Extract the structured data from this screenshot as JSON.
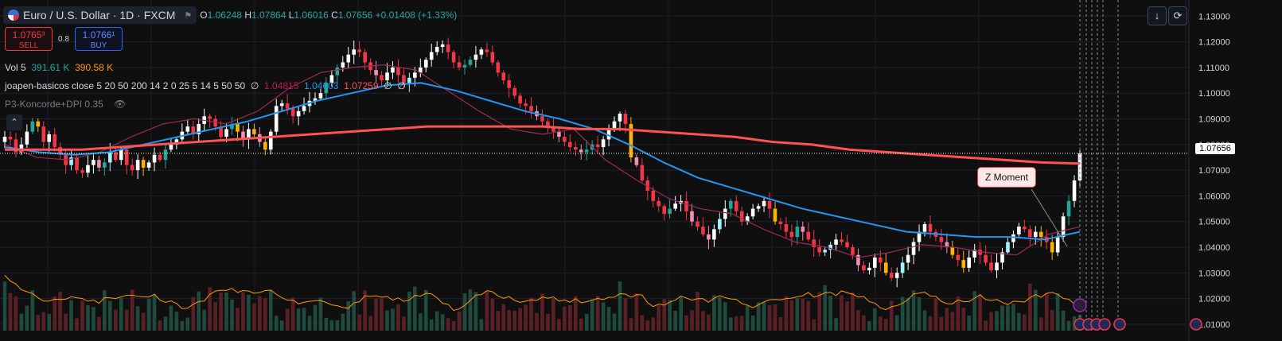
{
  "legend": {
    "symbol": "Euro / U.S. Dollar · 1D · FXCM",
    "open_label": "O",
    "open": "1.06248",
    "high_label": "H",
    "high": "1.07864",
    "low_label": "L",
    "low": "1.06016",
    "close_label": "C",
    "close": "1.07656",
    "change": "+0.01408 (+1.33%)"
  },
  "trade": {
    "sell_price": "1.0765³",
    "sell_label": "SELL",
    "spread": "0.8",
    "buy_price": "1.0766¹",
    "buy_label": "BUY"
  },
  "indicators": {
    "vol_label": "Vol 5",
    "vol_a": "391.61 K",
    "vol_b": "390.58 K",
    "joapen_label": "joapen-basicos close 5 20 50 200 14 2 0 25 5 14 5 50 50",
    "joapen_na1": "∅",
    "joapen_v1": "1.04815",
    "joapen_v2": "1.04603",
    "joapen_v3": "1.07259",
    "joapen_na2": "∅",
    "joapen_na3": "∅",
    "koncorde_label": "P3-Koncorde+DPI 0.35"
  },
  "annotation": {
    "label": "Z Moment"
  },
  "last_price_tag": "1.07656",
  "colors": {
    "up": "#ffffff",
    "down": "#f23645",
    "ma200": "#ff5252",
    "ma50": "#2196f3",
    "ma20": "#9c2a55",
    "vol_up": "#1f4b3f",
    "vol_down": "#5a2026"
  },
  "chart_data": {
    "type": "candlestick",
    "y_ticks": [
      "1.13000",
      "1.12000",
      "1.11000",
      "1.10000",
      "1.09000",
      "1.08000",
      "1.07000",
      "1.06000",
      "1.05000",
      "1.04000",
      "1.03000",
      "1.02000",
      "1.01000"
    ],
    "ylim": [
      1.0075,
      1.1338
    ],
    "close_series": [
      1.083,
      1.082,
      1.077,
      1.08,
      1.085,
      1.089,
      1.087,
      1.081,
      1.084,
      1.079,
      1.076,
      1.072,
      1.075,
      1.07,
      1.069,
      1.072,
      1.074,
      1.071,
      1.073,
      1.077,
      1.074,
      1.078,
      1.072,
      1.07,
      1.074,
      1.071,
      1.073,
      1.076,
      1.074,
      1.078,
      1.08,
      1.082,
      1.085,
      1.087,
      1.084,
      1.088,
      1.091,
      1.09,
      1.087,
      1.083,
      1.086,
      1.088,
      1.085,
      1.082,
      1.086,
      1.084,
      1.081,
      1.078,
      1.085,
      1.095,
      1.096,
      1.094,
      1.091,
      1.093,
      1.095,
      1.097,
      1.098,
      1.1,
      1.104,
      1.107,
      1.11,
      1.112,
      1.115,
      1.117,
      1.116,
      1.112,
      1.109,
      1.107,
      1.105,
      1.108,
      1.11,
      1.107,
      1.104,
      1.106,
      1.108,
      1.11,
      1.113,
      1.116,
      1.118,
      1.119,
      1.116,
      1.112,
      1.11,
      1.111,
      1.113,
      1.115,
      1.117,
      1.116,
      1.112,
      1.108,
      1.105,
      1.102,
      1.099,
      1.096,
      1.095,
      1.093,
      1.091,
      1.089,
      1.087,
      1.085,
      1.083,
      1.081,
      1.079,
      1.078,
      1.077,
      1.078,
      1.08,
      1.079,
      1.082,
      1.086,
      1.089,
      1.092,
      1.088,
      1.075,
      1.072,
      1.066,
      1.062,
      1.058,
      1.056,
      1.053,
      1.055,
      1.057,
      1.058,
      1.054,
      1.05,
      1.048,
      1.045,
      1.043,
      1.047,
      1.051,
      1.055,
      1.058,
      1.054,
      1.05,
      1.052,
      1.055,
      1.056,
      1.058,
      1.055,
      1.05,
      1.049,
      1.046,
      1.044,
      1.048,
      1.046,
      1.043,
      1.04,
      1.038,
      1.039,
      1.041,
      1.043,
      1.042,
      1.04,
      1.037,
      1.033,
      1.031,
      1.032,
      1.036,
      1.034,
      1.03,
      1.028,
      1.03,
      1.034,
      1.037,
      1.042,
      1.046,
      1.049,
      1.046,
      1.044,
      1.042,
      1.04,
      1.037,
      1.035,
      1.032,
      1.036,
      1.039,
      1.037,
      1.034,
      1.031,
      1.034,
      1.038,
      1.042,
      1.045,
      1.048,
      1.047,
      1.044,
      1.046,
      1.044,
      1.042,
      1.038,
      1.044,
      1.052,
      1.058,
      1.066,
      1.07656
    ],
    "ma200_series_start": 1.078,
    "ma200_series": [
      1.078,
      1.078,
      1.078,
      1.079,
      1.08,
      1.081,
      1.082,
      1.083,
      1.084,
      1.085,
      1.086,
      1.087,
      1.087,
      1.087,
      1.087,
      1.086,
      1.086,
      1.085,
      1.084,
      1.083,
      1.081,
      1.08,
      1.078,
      1.077,
      1.076,
      1.075,
      1.074,
      1.073,
      1.0726
    ],
    "ma50_series": [
      1.079,
      1.077,
      1.076,
      1.077,
      1.08,
      1.083,
      1.086,
      1.089,
      1.093,
      1.097,
      1.1,
      1.103,
      1.104,
      1.101,
      1.097,
      1.093,
      1.09,
      1.086,
      1.08,
      1.073,
      1.067,
      1.063,
      1.059,
      1.055,
      1.052,
      1.049,
      1.046,
      1.045,
      1.044,
      1.044,
      1.043,
      1.046
    ],
    "ma20_series": [
      1.08,
      1.075,
      1.074,
      1.077,
      1.083,
      1.088,
      1.09,
      1.088,
      1.093,
      1.102,
      1.108,
      1.11,
      1.111,
      1.109,
      1.101,
      1.093,
      1.086,
      1.084,
      1.086,
      1.074,
      1.066,
      1.059,
      1.055,
      1.053,
      1.047,
      1.042,
      1.04,
      1.036,
      1.038,
      1.041,
      1.04,
      1.038,
      1.037,
      1.045,
      1.048
    ]
  }
}
